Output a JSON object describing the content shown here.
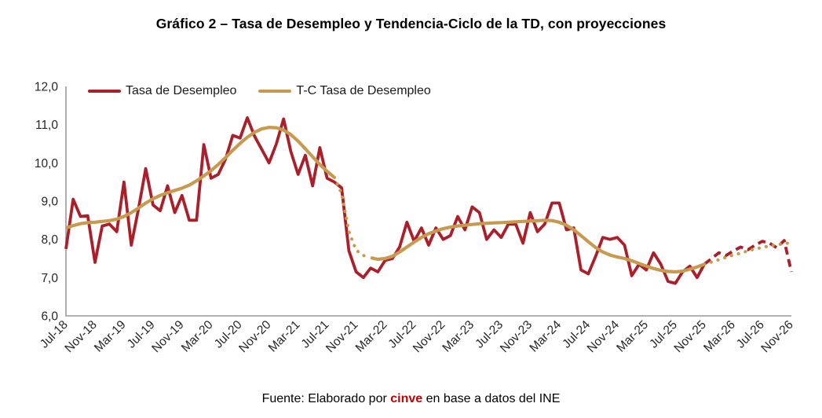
{
  "header": {
    "title": "Gráfico 2 – Tasa de Desempleo y Tendencia-Ciclo de la TD, con proyecciones"
  },
  "legend": {
    "items": [
      {
        "label": "Tasa de Desempleo",
        "color": "#AB1F2B"
      },
      {
        "label": "T-C Tasa de Desempleo",
        "color": "#C79A4F"
      }
    ]
  },
  "footer": {
    "prefix": "Fuente: Elaborado por ",
    "brand": "cinve",
    "suffix": " en base a datos del INE",
    "brand_color": "#C00000"
  },
  "chart_data": {
    "type": "line",
    "title": "Gráfico 2 – Tasa de Desempleo y Tendencia-Ciclo de la TD, con proyecciones",
    "x_unit": "month",
    "x_start": "2018-07",
    "x_end": "2026-11",
    "n_points": 101,
    "x_tick_every": 4,
    "x_tick_labels": [
      "Jul-18",
      "Nov-18",
      "Mar-19",
      "Jul-19",
      "Nov-19",
      "Mar-20",
      "Jul-20",
      "Nov-20",
      "Mar-21",
      "Jul-21",
      "Nov-21",
      "Mar-22",
      "Jul-22",
      "Nov-22",
      "Mar-23",
      "Jul-23",
      "Nov-23",
      "Mar-24",
      "Jul-24",
      "Nov-24",
      "Mar-25",
      "Jul-25",
      "Nov-25",
      "Mar-26",
      "Jul-26",
      "Nov-26"
    ],
    "ylim": [
      6,
      12
    ],
    "y_ticks": [
      {
        "value": 6,
        "label": "6,0"
      },
      {
        "value": 7,
        "label": "7,0"
      },
      {
        "value": 8,
        "label": "8,0"
      },
      {
        "value": 9,
        "label": "9,0"
      },
      {
        "value": 10,
        "label": "10,0"
      },
      {
        "value": 11,
        "label": "11,0"
      },
      {
        "value": 12,
        "label": "12,0"
      }
    ],
    "grid": false,
    "axis_color": "#A6A6A6",
    "legend_position": "top-left-inside",
    "projection_start_index": 88,
    "series": [
      {
        "name": "Tasa de Desempleo",
        "color": "#AB1F2B",
        "width": 3.8,
        "segments": [
          {
            "from": 0,
            "to": 88,
            "dash": "none"
          },
          {
            "from": 88,
            "to": 100,
            "dash": "dash"
          }
        ],
        "values": [
          7.75,
          9.05,
          8.6,
          8.62,
          7.4,
          8.35,
          8.4,
          8.2,
          9.5,
          7.85,
          8.8,
          9.85,
          8.9,
          8.75,
          9.4,
          8.7,
          9.15,
          8.5,
          8.5,
          10.48,
          9.6,
          9.7,
          10.1,
          10.72,
          10.65,
          11.18,
          10.7,
          10.35,
          10.0,
          10.5,
          11.15,
          10.3,
          9.7,
          10.2,
          9.4,
          10.4,
          9.6,
          9.5,
          9.35,
          7.7,
          7.15,
          7.0,
          7.25,
          7.15,
          7.45,
          7.5,
          7.8,
          8.45,
          7.95,
          8.3,
          7.85,
          8.3,
          8.0,
          8.1,
          8.6,
          8.25,
          8.85,
          8.7,
          8.0,
          8.25,
          8.05,
          8.4,
          8.4,
          7.9,
          8.7,
          8.2,
          8.4,
          8.95,
          8.95,
          8.25,
          8.3,
          7.2,
          7.1,
          7.55,
          8.05,
          8.0,
          8.05,
          7.85,
          7.05,
          7.35,
          7.2,
          7.65,
          7.35,
          6.9,
          6.85,
          7.15,
          7.3,
          7.0,
          7.35,
          7.5,
          7.65,
          7.58,
          7.7,
          7.8,
          7.73,
          7.85,
          7.95,
          7.9,
          7.78,
          7.97,
          7.15
        ]
      },
      {
        "name": "T-C Tasa de Desempleo",
        "color": "#C79A4F",
        "width": 4.2,
        "segments": [
          {
            "from": 0,
            "to": 37,
            "dash": "none"
          },
          {
            "from": 37,
            "to": 42,
            "dash": "dot"
          },
          {
            "from": 42,
            "to": 88,
            "dash": "none"
          },
          {
            "from": 88,
            "to": 100,
            "dash": "dot"
          }
        ],
        "values": [
          8.3,
          8.36,
          8.41,
          8.44,
          8.45,
          8.47,
          8.49,
          8.53,
          8.6,
          8.7,
          8.82,
          8.95,
          9.06,
          9.15,
          9.22,
          9.28,
          9.34,
          9.42,
          9.53,
          9.66,
          9.8,
          9.96,
          10.14,
          10.33,
          10.51,
          10.67,
          10.8,
          10.89,
          10.93,
          10.92,
          10.86,
          10.74,
          10.57,
          10.37,
          10.16,
          9.96,
          9.78,
          9.62,
          9.2,
          8.2,
          7.72,
          7.58,
          7.52,
          7.48,
          7.5,
          7.56,
          7.67,
          7.8,
          7.93,
          8.05,
          8.15,
          8.22,
          8.28,
          8.32,
          8.35,
          8.37,
          8.39,
          8.41,
          8.42,
          8.43,
          8.44,
          8.45,
          8.46,
          8.47,
          8.48,
          8.49,
          8.5,
          8.49,
          8.45,
          8.37,
          8.25,
          8.1,
          7.94,
          7.79,
          7.67,
          7.59,
          7.54,
          7.5,
          7.44,
          7.37,
          7.3,
          7.24,
          7.19,
          7.16,
          7.15,
          7.17,
          7.22,
          7.28,
          7.35,
          7.41,
          7.47,
          7.53,
          7.59,
          7.64,
          7.7,
          7.75,
          7.79,
          7.83,
          7.86,
          7.89,
          7.91
        ]
      }
    ]
  }
}
